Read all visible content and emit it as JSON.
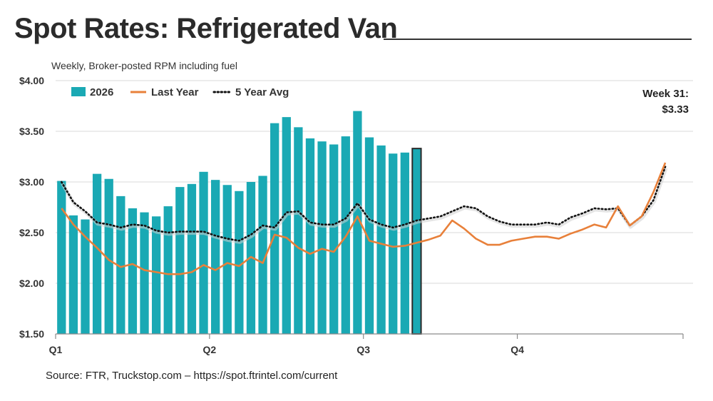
{
  "title": "Spot Rates: Refrigerated Van",
  "subtitle": "Weekly, Broker-posted RPM including fuel",
  "source": "Source: FTR, Truckstop.com – https://spot.ftrintel.com/current",
  "callout": {
    "line1": "Week 31:",
    "line2": "$3.33"
  },
  "colors": {
    "bars": "#1aa9b4",
    "last_year": "#e8803a",
    "five_year": "#111111",
    "grid": "#d9d9d9"
  },
  "chart_data": {
    "type": "bar",
    "ylim": [
      1.5,
      4.0
    ],
    "y_ticks": [
      {
        "value": 1.5,
        "label": "$1.50"
      },
      {
        "value": 2.0,
        "label": "$2.00"
      },
      {
        "value": 2.5,
        "label": "$2.50"
      },
      {
        "value": 3.0,
        "label": "$3.00"
      },
      {
        "value": 3.5,
        "label": "$3.50"
      },
      {
        "value": 4.0,
        "label": "$4.00"
      }
    ],
    "x_ticks": [
      {
        "week": 1,
        "label": "Q1"
      },
      {
        "week": 14,
        "label": "Q2"
      },
      {
        "week": 27,
        "label": "Q3"
      },
      {
        "week": 40,
        "label": "Q4"
      }
    ],
    "weeks_total": 53,
    "grid": true,
    "legend": {
      "position": "top-left",
      "entries": [
        "2026",
        "Last Year",
        "5 Year Avg"
      ]
    },
    "series": [
      {
        "name": "2026",
        "type": "bar",
        "values": [
          3.01,
          2.67,
          2.63,
          3.08,
          3.03,
          2.86,
          2.74,
          2.7,
          2.66,
          2.76,
          2.95,
          2.98,
          3.1,
          3.02,
          2.97,
          2.91,
          3.0,
          3.06,
          3.58,
          3.64,
          3.54,
          3.43,
          3.4,
          3.37,
          3.45,
          3.7,
          3.44,
          3.36,
          3.28,
          3.29,
          3.33
        ],
        "highlight_last": true
      },
      {
        "name": "Last Year",
        "type": "line",
        "values": [
          2.74,
          2.58,
          2.46,
          2.35,
          2.23,
          2.16,
          2.19,
          2.13,
          2.11,
          2.09,
          2.09,
          2.11,
          2.18,
          2.13,
          2.2,
          2.17,
          2.26,
          2.2,
          2.48,
          2.45,
          2.35,
          2.29,
          2.34,
          2.31,
          2.46,
          2.66,
          2.42,
          2.39,
          2.36,
          2.37,
          2.4,
          2.43,
          2.47,
          2.62,
          2.54,
          2.44,
          2.38,
          2.38,
          2.42,
          2.44,
          2.46,
          2.46,
          2.44,
          2.49,
          2.53,
          2.58,
          2.55,
          2.76,
          2.57,
          2.66,
          2.9,
          3.19
        ]
      },
      {
        "name": "5 Year Avg",
        "type": "line",
        "values": [
          3.0,
          2.8,
          2.71,
          2.6,
          2.58,
          2.55,
          2.58,
          2.57,
          2.52,
          2.5,
          2.51,
          2.51,
          2.51,
          2.47,
          2.44,
          2.42,
          2.48,
          2.57,
          2.55,
          2.7,
          2.71,
          2.6,
          2.58,
          2.58,
          2.64,
          2.79,
          2.63,
          2.58,
          2.55,
          2.58,
          2.62,
          2.64,
          2.66,
          2.71,
          2.76,
          2.74,
          2.66,
          2.61,
          2.58,
          2.58,
          2.58,
          2.6,
          2.58,
          2.65,
          2.69,
          2.74,
          2.73,
          2.74,
          2.57,
          2.66,
          2.82,
          3.15
        ]
      }
    ]
  }
}
